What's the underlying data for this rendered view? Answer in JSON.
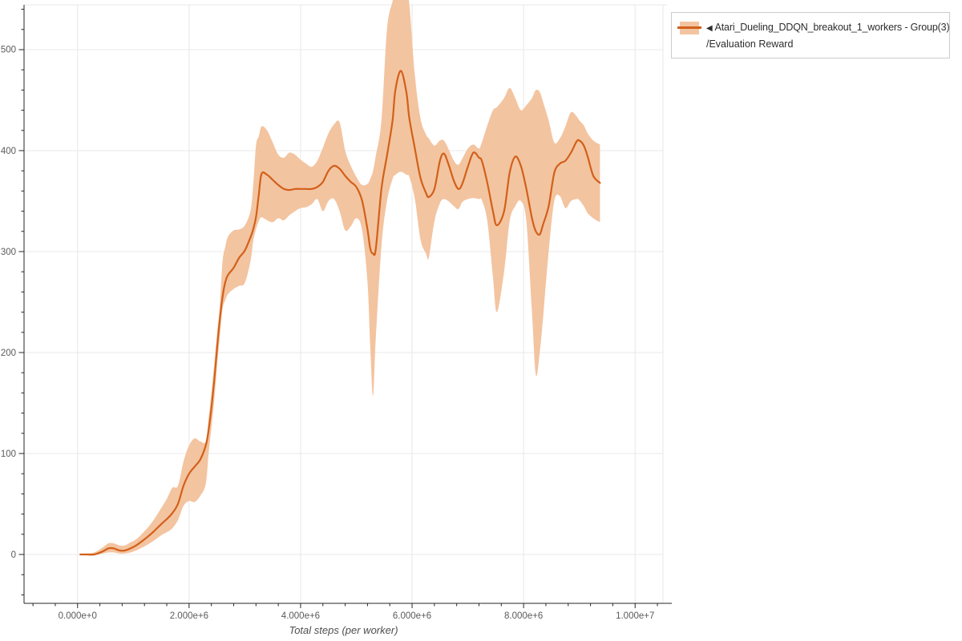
{
  "legend": {
    "arrow": "◀",
    "label_line1": "Atari_Dueling_DDQN_breakout_1_workers - Group(3)",
    "label_line2": "/Evaluation Reward"
  },
  "chart_data": {
    "type": "line",
    "title": "",
    "xlabel": "Total steps (per worker)",
    "ylabel": "",
    "grid": true,
    "legend_position": "top-right",
    "series_name": "Atari_Dueling_DDQN_breakout_1_workers - Group(3)/Evaluation Reward",
    "x_unit": "millions of steps",
    "xlim_millions": [
      -0.96,
      10.5
    ],
    "ylim": [
      -48.4,
      544.4
    ],
    "x_tick_values_millions": [
      0,
      2,
      4,
      6,
      8,
      10
    ],
    "x_tick_labels": [
      "0.000e+0",
      "2.000e+6",
      "4.000e+6",
      "6.000e+6",
      "8.000e+6",
      "1.000e+7"
    ],
    "x_minor_step_millions": 0.4,
    "y_tick_values": [
      0,
      100,
      200,
      300,
      400,
      500
    ],
    "y_tick_labels": [
      "0",
      "100",
      "200",
      "300",
      "400",
      "500"
    ],
    "y_minor_step": 20,
    "colors": {
      "line": "#d2601a",
      "band": "#f3c4a0",
      "grid": "#e8e8e8",
      "axis": "#262626",
      "tick_label": "#5a5a5a",
      "axis_title": "#4f4f4f"
    },
    "x": [
      0.05,
      0.15,
      0.3,
      0.45,
      0.55,
      0.65,
      0.75,
      0.85,
      0.95,
      1.05,
      1.2,
      1.35,
      1.5,
      1.6,
      1.7,
      1.8,
      1.9,
      2.0,
      2.1,
      2.2,
      2.3,
      2.35,
      2.4,
      2.45,
      2.5,
      2.55,
      2.6,
      2.65,
      2.7,
      2.8,
      2.9,
      3.0,
      3.1,
      3.15,
      3.2,
      3.25,
      3.3,
      3.4,
      3.5,
      3.6,
      3.7,
      3.8,
      3.9,
      4.0,
      4.1,
      4.2,
      4.3,
      4.4,
      4.5,
      4.6,
      4.7,
      4.8,
      4.9,
      5.0,
      5.1,
      5.2,
      5.25,
      5.3,
      5.35,
      5.45,
      5.55,
      5.65,
      5.7,
      5.8,
      5.9,
      5.95,
      6.05,
      6.15,
      6.25,
      6.3,
      6.4,
      6.5,
      6.57,
      6.65,
      6.75,
      6.83,
      6.9,
      7.0,
      7.1,
      7.2,
      7.25,
      7.35,
      7.45,
      7.52,
      7.65,
      7.75,
      7.85,
      7.95,
      8.05,
      8.15,
      8.22,
      8.29,
      8.35,
      8.45,
      8.55,
      8.65,
      8.75,
      8.85,
      8.95,
      9.0,
      9.08,
      9.15,
      9.25,
      9.37
    ],
    "mean": [
      0,
      0,
      0,
      3,
      6,
      6,
      4,
      4,
      6,
      9,
      15,
      22,
      30,
      35,
      41,
      50,
      68,
      80,
      87,
      94,
      108,
      123,
      145,
      172,
      203,
      232,
      255,
      270,
      277,
      284,
      294,
      301,
      314,
      322,
      334,
      356,
      377,
      376,
      371,
      366,
      362,
      361,
      362,
      362,
      362,
      362,
      364,
      369,
      380,
      385,
      382,
      375,
      369,
      364,
      351,
      322,
      303,
      298,
      303,
      362,
      395,
      430,
      460,
      479,
      457,
      432,
      402,
      373,
      358,
      354,
      362,
      390,
      397,
      387,
      370,
      362,
      367,
      384,
      398,
      393,
      390,
      368,
      340,
      326,
      340,
      378,
      394,
      385,
      362,
      333,
      320,
      317,
      327,
      345,
      378,
      387,
      390,
      398,
      409,
      410,
      405,
      394,
      375,
      368
    ],
    "band_low": [
      0,
      0,
      0,
      1,
      2,
      2,
      1,
      1,
      2,
      4,
      8,
      13,
      19,
      22,
      26,
      34,
      48,
      53,
      52,
      58,
      70,
      100,
      125,
      152,
      185,
      215,
      243,
      252,
      258,
      263,
      266,
      269,
      290,
      310,
      322,
      330,
      334,
      331,
      329,
      333,
      331,
      336,
      340,
      343,
      344,
      347,
      352,
      340,
      350,
      352,
      340,
      321,
      325,
      333,
      322,
      270,
      205,
      157,
      215,
      305,
      350,
      372,
      376,
      379,
      376,
      374,
      352,
      312,
      298,
      294,
      330,
      348,
      352,
      350,
      345,
      342,
      349,
      352,
      353,
      352,
      351,
      330,
      275,
      240,
      280,
      330,
      345,
      350,
      330,
      240,
      178,
      200,
      235,
      300,
      350,
      355,
      343,
      350,
      352,
      351,
      345,
      338,
      333,
      329
    ],
    "band_high": [
      0,
      1,
      2,
      7,
      11,
      11,
      9,
      9,
      12,
      15,
      23,
      33,
      46,
      55,
      66,
      68,
      92,
      108,
      115,
      112,
      112,
      135,
      160,
      188,
      218,
      246,
      290,
      305,
      315,
      321,
      322,
      326,
      340,
      365,
      405,
      414,
      424,
      420,
      408,
      396,
      393,
      398,
      396,
      391,
      387,
      384,
      390,
      403,
      417,
      426,
      428,
      400,
      385,
      374,
      366,
      367,
      372,
      380,
      395,
      430,
      520,
      548,
      558,
      560,
      552,
      545,
      475,
      432,
      416,
      412,
      405,
      410,
      410,
      402,
      390,
      386,
      392,
      402,
      406,
      402,
      408,
      425,
      440,
      443,
      452,
      462,
      452,
      440,
      445,
      452,
      460,
      458,
      448,
      430,
      408,
      412,
      424,
      438,
      434,
      430,
      425,
      417,
      410,
      406
    ]
  }
}
